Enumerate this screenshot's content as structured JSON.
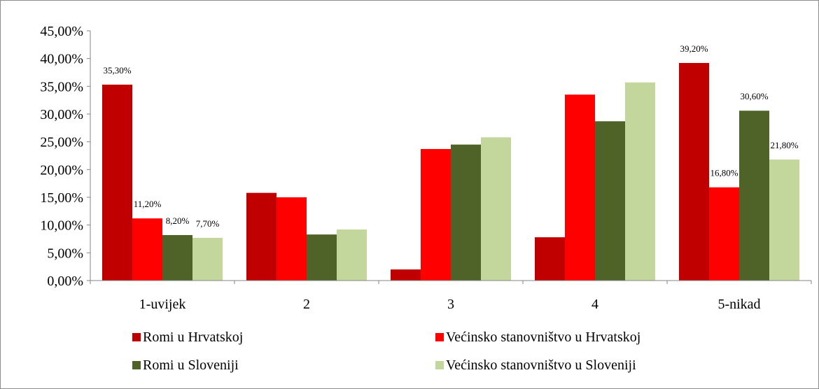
{
  "chart_data": {
    "type": "bar",
    "categories": [
      "1-uvijek",
      "2",
      "3",
      "4",
      "5-nikad"
    ],
    "series": [
      {
        "name": "Romi u Hrvatskoj",
        "color": "#c00000",
        "values": [
          35.3,
          15.8,
          2.0,
          7.8,
          39.2
        ]
      },
      {
        "name": "Većinsko stanovništvo u Hrvatskoj",
        "color": "#ff0000",
        "values": [
          11.2,
          15.0,
          23.7,
          33.5,
          16.8
        ]
      },
      {
        "name": "Romi u Sloveniji",
        "color": "#4f6228",
        "values": [
          8.2,
          8.3,
          24.5,
          28.7,
          30.6
        ]
      },
      {
        "name": "Većinsko stanovništvo u Sloveniji",
        "color": "#c3d69b",
        "values": [
          7.7,
          9.2,
          25.8,
          35.7,
          21.8
        ]
      }
    ],
    "data_labels": [
      {
        "series": 0,
        "category": 0,
        "text": "35,30%"
      },
      {
        "series": 1,
        "category": 0,
        "text": "11,20%"
      },
      {
        "series": 2,
        "category": 0,
        "text": "8,20%"
      },
      {
        "series": 3,
        "category": 0,
        "text": "7,70%"
      },
      {
        "series": 0,
        "category": 4,
        "text": "39,20%"
      },
      {
        "series": 1,
        "category": 4,
        "text": "16,80%"
      },
      {
        "series": 2,
        "category": 4,
        "text": "30,60%"
      },
      {
        "series": 3,
        "category": 4,
        "text": "21,80%"
      }
    ],
    "y_ticks": [
      "0,00%",
      "5,00%",
      "10,00%",
      "15,00%",
      "20,00%",
      "25,00%",
      "30,00%",
      "35,00%",
      "40,00%",
      "45,00%"
    ],
    "ylim": [
      0,
      45
    ],
    "title": "",
    "xlabel": "",
    "ylabel": "",
    "grid": false,
    "legend_position": "bottom"
  }
}
